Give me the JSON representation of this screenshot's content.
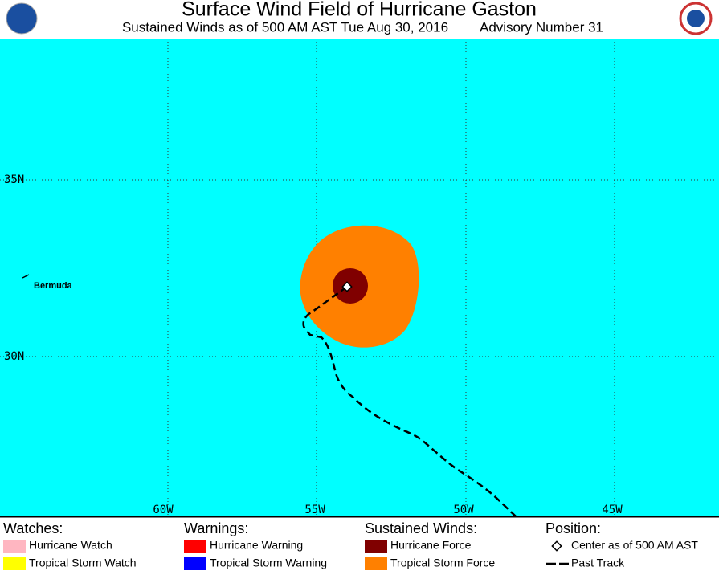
{
  "header": {
    "title": "Surface Wind Field of Hurricane Gaston",
    "subtitle": "Sustained Winds as of 500 AM AST Tue Aug 30, 2016",
    "advisory": "Advisory Number 31"
  },
  "map": {
    "lat_labels": [
      "35N",
      "30N"
    ],
    "lon_labels": [
      "60W",
      "55W",
      "50W",
      "45W"
    ],
    "place": "Bermuda"
  },
  "legend": [
    {
      "heading": "Watches:",
      "items": [
        "Hurricane Watch",
        "Tropical Storm Watch"
      ]
    },
    {
      "heading": "Warnings:",
      "items": [
        "Hurricane Warning",
        "Tropical Storm Warning"
      ]
    },
    {
      "heading": "Sustained Winds:",
      "items": [
        "Hurricane Force",
        "Tropical Storm Force"
      ]
    },
    {
      "heading": "Position:",
      "items": [
        "Center as of 500 AM AST",
        "Past Track"
      ]
    }
  ]
}
